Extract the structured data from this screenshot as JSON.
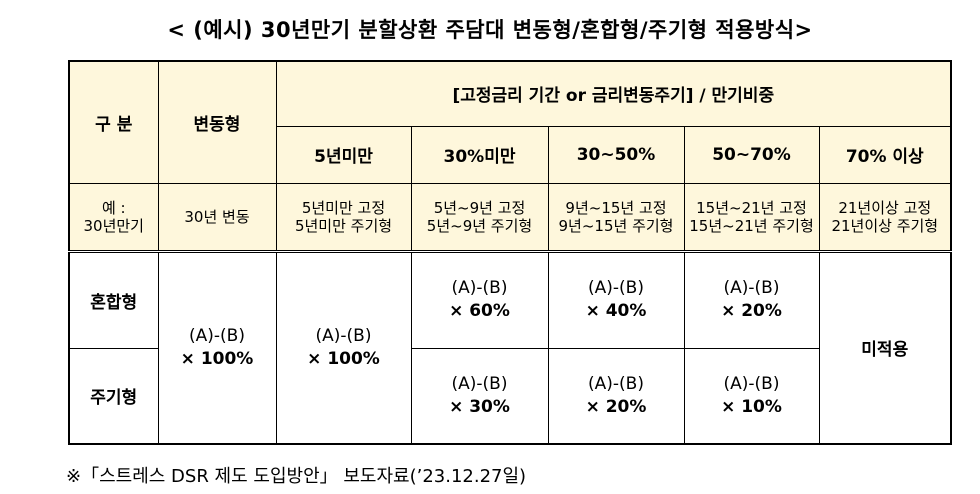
{
  "title": "< (예시) 30년만기 분할상환 주담대 변동형/혼합형/주기형 적용방식>",
  "table": {
    "header": {
      "category": "구 분",
      "variable": "변동형",
      "group": "[고정금리 기간 or 금리변동주기] / 만기비중",
      "periods": [
        "5년미만",
        "30%미만",
        "30~50%",
        "50~70%",
        "70% 이상"
      ]
    },
    "example": {
      "label": [
        "예 :",
        "30년만기"
      ],
      "cells": [
        [
          "30년 변동"
        ],
        [
          "5년미만 고정",
          "5년미만 주기형"
        ],
        [
          "5년~9년 고정",
          "5년~9년 주기형"
        ],
        [
          "9년~15년 고정",
          "9년~15년 주기형"
        ],
        [
          "15년~21년 고정",
          "15년~21년 주기형"
        ],
        [
          "21년이상 고정",
          "21년이상 주기형"
        ]
      ]
    },
    "merged": {
      "variable": [
        "(A)-(B)",
        "× 100%"
      ],
      "under_5y": [
        "(A)-(B)",
        "× 100%"
      ],
      "over_70": "미적용"
    },
    "rows": [
      {
        "label": "혼합형",
        "cells": [
          [
            "(A)-(B)",
            "× 60%"
          ],
          [
            "(A)-(B)",
            "× 40%"
          ],
          [
            "(A)-(B)",
            "× 20%"
          ]
        ]
      },
      {
        "label": "주기형",
        "cells": [
          [
            "(A)-(B)",
            "× 30%"
          ],
          [
            "(A)-(B)",
            "× 20%"
          ],
          [
            "(A)-(B)",
            "× 10%"
          ]
        ]
      }
    ]
  },
  "footer": "※「스트레스 DSR 제도 도입방안」 보도자료(’23.12.27일)"
}
